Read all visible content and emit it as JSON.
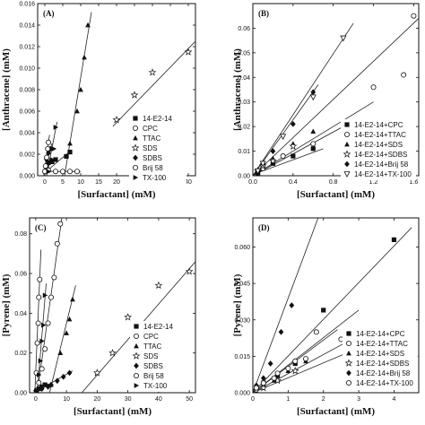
{
  "chart_data": [
    {
      "panel": "(A)",
      "type": "scatter",
      "xlabel": "[Surfactant] (mM)",
      "ylabel": "[Anthracene] (mM)",
      "xlim": [
        -2,
        42
      ],
      "ylim": [
        0,
        0.016
      ],
      "xticks": [
        0,
        5,
        10,
        15,
        20,
        25,
        30,
        35,
        40
      ],
      "yticks": [
        0.0,
        0.002,
        0.004,
        0.006,
        0.008,
        0.01,
        0.012,
        0.014,
        0.016
      ],
      "ytick_decimals": 3,
      "legend": "top-center",
      "series": [
        {
          "name": "14-E2-14",
          "marker": "square",
          "points": [
            [
              0.2,
              0.0004
            ],
            [
              0.5,
              0.0008
            ],
            [
              1,
              0.0012
            ],
            [
              2,
              0.0013
            ],
            [
              3,
              0.0015
            ],
            [
              6,
              0.0018
            ],
            [
              7,
              0.0022
            ]
          ]
        },
        {
          "name": "CPC",
          "marker": "circle-open",
          "points": [
            [
              0.3,
              0.0004
            ],
            [
              1,
              0.0005
            ],
            [
              3,
              0.0004
            ],
            [
              5,
              0.0004
            ],
            [
              7,
              0.0004
            ],
            [
              9,
              0.0004
            ]
          ]
        },
        {
          "name": "TTAC",
          "marker": "triangle",
          "points": [
            [
              7,
              0.003
            ],
            [
              9,
              0.006
            ],
            [
              10,
              0.008
            ],
            [
              11,
              0.011
            ],
            [
              12,
              0.014
            ]
          ]
        },
        {
          "name": "SDS",
          "marker": "star-open",
          "points": [
            [
              20,
              0.0052
            ],
            [
              25,
              0.0075
            ],
            [
              30,
              0.0096
            ],
            [
              40,
              0.0115
            ]
          ]
        },
        {
          "name": "SDBS",
          "marker": "diamond",
          "points": [
            [
              0.5,
              0.0015
            ],
            [
              1,
              0.0021
            ],
            [
              1.5,
              0.0025
            ]
          ]
        },
        {
          "name": "Brij 58",
          "marker": "circle-open",
          "points": [
            [
              0,
              0.0004
            ],
            [
              0.2,
              0.0009
            ],
            [
              0.5,
              0.0017
            ],
            [
              0.8,
              0.0025
            ],
            [
              1,
              0.0031
            ]
          ]
        },
        {
          "name": "TX-100",
          "marker": "triangle-right",
          "points": [
            [
              1,
              0.0004
            ],
            [
              2,
              0.0015
            ],
            [
              2.5,
              0.0025
            ],
            [
              3,
              0.0045
            ]
          ]
        }
      ],
      "lines": [
        {
          "x": [
            0,
            7.5
          ],
          "y": [
            0.0003,
            0.0024
          ]
        },
        {
          "x": [
            0,
            10
          ],
          "y": [
            0.0004,
            0.0004
          ]
        },
        {
          "x": [
            5.5,
            13
          ],
          "y": [
            0.0,
            0.0152
          ]
        },
        {
          "x": [
            19,
            42
          ],
          "y": [
            0.0046,
            0.0125
          ]
        },
        {
          "x": [
            0,
            2
          ],
          "y": [
            0.0007,
            0.003
          ]
        },
        {
          "x": [
            -0.3,
            1.3
          ],
          "y": [
            0.0,
            0.0038
          ]
        },
        {
          "x": [
            0.5,
            3.4
          ],
          "y": [
            0.0,
            0.005
          ]
        }
      ]
    },
    {
      "panel": "(B)",
      "type": "scatter",
      "xlabel": "[Surfactant] (mM)",
      "ylabel": "[Anthracene] (mM)",
      "xlim": [
        0,
        1.65
      ],
      "ylim": [
        0,
        0.07
      ],
      "xticks": [
        0.0,
        0.4,
        0.8,
        1.2,
        1.6
      ],
      "yticks": [
        0.0,
        0.01,
        0.02,
        0.03,
        0.04,
        0.05,
        0.06
      ],
      "xtick_decimals": 1,
      "ytick_decimals": 2,
      "legend": "bottom-right",
      "series": [
        {
          "name": "14-E2-14+CPC",
          "marker": "square",
          "points": [
            [
              0.05,
              0.001
            ],
            [
              0.1,
              0.003
            ],
            [
              0.2,
              0.005
            ],
            [
              0.4,
              0.008
            ],
            [
              0.6,
              0.011
            ]
          ]
        },
        {
          "name": "14-E2-14+TTAC",
          "marker": "circle-open",
          "points": [
            [
              0.05,
              0.002
            ],
            [
              0.1,
              0.003
            ],
            [
              0.3,
              0.008
            ],
            [
              0.6,
              0.013
            ],
            [
              0.9,
              0.017
            ],
            [
              1.2,
              0.036
            ],
            [
              1.5,
              0.041
            ],
            [
              1.6,
              0.065
            ]
          ]
        },
        {
          "name": "14-E2-14+SDS",
          "marker": "triangle",
          "points": [
            [
              0.05,
              0.002
            ],
            [
              0.1,
              0.004
            ],
            [
              0.2,
              0.007
            ],
            [
              0.4,
              0.013
            ],
            [
              0.6,
              0.018
            ]
          ]
        },
        {
          "name": "14-E2-14+SDBS",
          "marker": "star-open",
          "points": [
            [
              0.05,
              0.002
            ],
            [
              0.1,
              0.004
            ],
            [
              0.2,
              0.006
            ],
            [
              0.4,
              0.012
            ]
          ]
        },
        {
          "name": "14-E2-14+Brij 58",
          "marker": "diamond",
          "points": [
            [
              0.05,
              0.002
            ],
            [
              0.1,
              0.005
            ],
            [
              0.2,
              0.01
            ],
            [
              0.4,
              0.021
            ],
            [
              0.6,
              0.034
            ]
          ]
        },
        {
          "name": "14-E2-14+TX-100",
          "marker": "triangle-down-open",
          "points": [
            [
              0.05,
              0.002
            ],
            [
              0.1,
              0.005
            ],
            [
              0.3,
              0.016
            ],
            [
              0.6,
              0.032
            ],
            [
              0.9,
              0.056
            ]
          ]
        }
      ],
      "lines": [
        {
          "x": [
            0,
            0.7
          ],
          "y": [
            0.0005,
            0.011
          ]
        },
        {
          "x": [
            0,
            1.65
          ],
          "y": [
            0.0,
            0.064
          ]
        },
        {
          "x": [
            0,
            1.2
          ],
          "y": [
            0.0,
            0.03
          ]
        },
        {
          "x": [
            0,
            0.9
          ],
          "y": [
            0.0,
            0.02
          ]
        },
        {
          "x": [
            0,
            0.65
          ],
          "y": [
            0.0,
            0.037
          ]
        },
        {
          "x": [
            0,
            1.0
          ],
          "y": [
            0.0,
            0.062
          ]
        }
      ]
    },
    {
      "panel": "(C)",
      "type": "scatter",
      "xlabel": "[Surfactant] (mM)",
      "ylabel": "[Pyrene] (mM)",
      "xlim": [
        -2,
        52
      ],
      "ylim": [
        0,
        0.088
      ],
      "xticks": [
        0,
        10,
        20,
        30,
        40,
        50
      ],
      "yticks": [
        0.0,
        0.02,
        0.04,
        0.06,
        0.08
      ],
      "ytick_decimals": 2,
      "legend": "bottom-right",
      "series": [
        {
          "name": "14-E2-14",
          "marker": "square",
          "points": [
            [
              0.3,
              0.001
            ],
            [
              1,
              0.002
            ],
            [
              2,
              0.003
            ],
            [
              3,
              0.004
            ]
          ]
        },
        {
          "name": "CPC",
          "marker": "circle-open",
          "points": [
            [
              1,
              0.005
            ],
            [
              2,
              0.012
            ],
            [
              3,
              0.022
            ],
            [
              4,
              0.035
            ],
            [
              5,
              0.048
            ],
            [
              6,
              0.058
            ],
            [
              7,
              0.075
            ],
            [
              8,
              0.085
            ]
          ]
        },
        {
          "name": "TTAC",
          "marker": "triangle",
          "points": [
            [
              5,
              0.004
            ],
            [
              8,
              0.02
            ],
            [
              10,
              0.03
            ],
            [
              11,
              0.037
            ],
            [
              12,
              0.047
            ]
          ]
        },
        {
          "name": "SDS",
          "marker": "star-open",
          "points": [
            [
              20,
              0.01
            ],
            [
              25,
              0.02
            ],
            [
              30,
              0.038
            ],
            [
              40,
              0.054
            ],
            [
              50,
              0.061
            ]
          ]
        },
        {
          "name": "SDBS",
          "marker": "diamond",
          "points": [
            [
              0,
              0.001
            ],
            [
              2,
              0.002
            ],
            [
              4,
              0.003
            ],
            [
              5,
              0.004
            ],
            [
              7,
              0.006
            ],
            [
              9,
              0.008
            ],
            [
              11,
              0.01
            ]
          ]
        },
        {
          "name": "Brij 58",
          "marker": "circle-open",
          "points": [
            [
              0.2,
              0.01
            ],
            [
              0.5,
              0.025
            ],
            [
              0.8,
              0.035
            ],
            [
              1,
              0.048
            ],
            [
              1.3,
              0.057
            ]
          ]
        },
        {
          "name": "TX-100",
          "marker": "triangle-right",
          "points": [
            [
              1,
              0.009
            ],
            [
              1.5,
              0.016
            ],
            [
              2,
              0.026
            ],
            [
              2.5,
              0.034
            ],
            [
              3,
              0.049
            ]
          ]
        }
      ],
      "lines": [
        {
          "x": [
            0,
            4
          ],
          "y": [
            0.0005,
            0.0045
          ]
        },
        {
          "x": [
            0.5,
            8.5
          ],
          "y": [
            0.0,
            0.088
          ]
        },
        {
          "x": [
            4.5,
            13
          ],
          "y": [
            0.0,
            0.054
          ]
        },
        {
          "x": [
            15,
            52
          ],
          "y": [
            0.0,
            0.066
          ]
        },
        {
          "x": [
            0,
            12
          ],
          "y": [
            0.0005,
            0.011
          ]
        },
        {
          "x": [
            -0.3,
            1.7
          ],
          "y": [
            0.0,
            0.072
          ]
        },
        {
          "x": [
            0.5,
            3.4
          ],
          "y": [
            0.0,
            0.055
          ]
        }
      ]
    },
    {
      "panel": "(D)",
      "type": "scatter",
      "xlabel": "[Surfactant] (mM)",
      "ylabel": "[Pyrene] (mM)",
      "xlim": [
        0,
        4.7
      ],
      "ylim": [
        0,
        0.072
      ],
      "xticks": [
        0,
        1,
        2,
        3,
        4
      ],
      "yticks": [
        0.0,
        0.015,
        0.03,
        0.045,
        0.06
      ],
      "ytick_decimals": 3,
      "legend": "bottom-right",
      "series": [
        {
          "name": "14-E2-14+CPC",
          "marker": "square",
          "points": [
            [
              0.1,
              0.002
            ],
            [
              0.3,
              0.004
            ],
            [
              0.7,
              0.007
            ],
            [
              1.2,
              0.012
            ],
            [
              2,
              0.034
            ],
            [
              4,
              0.063
            ]
          ]
        },
        {
          "name": "14-E2-14+TTAC",
          "marker": "circle-open",
          "points": [
            [
              0.1,
              0.002
            ],
            [
              0.3,
              0.004
            ],
            [
              0.7,
              0.008
            ],
            [
              1.2,
              0.013
            ],
            [
              1.8,
              0.025
            ],
            [
              2.5,
              0.022
            ]
          ]
        },
        {
          "name": "14-E2-14+SDS",
          "marker": "triangle",
          "points": [
            [
              0.1,
              0.002
            ],
            [
              0.3,
              0.003
            ],
            [
              0.6,
              0.005
            ],
            [
              1,
              0.009
            ],
            [
              1.5,
              0.013
            ]
          ]
        },
        {
          "name": "14-E2-14+SDBS",
          "marker": "star-open",
          "points": [
            [
              0.1,
              0.001
            ],
            [
              0.3,
              0.002
            ],
            [
              0.7,
              0.005
            ],
            [
              1.2,
              0.009
            ]
          ]
        },
        {
          "name": "14-E2-14+Brij 58",
          "marker": "diamond",
          "points": [
            [
              0.1,
              0.003
            ],
            [
              0.3,
              0.006
            ],
            [
              0.5,
              0.012
            ],
            [
              0.8,
              0.025
            ],
            [
              1.1,
              0.036
            ]
          ]
        },
        {
          "name": "14-E2-14+TX-100",
          "marker": "circle-open",
          "points": [
            [
              0.1,
              0.002
            ],
            [
              0.3,
              0.004
            ],
            [
              0.6,
              0.006
            ],
            [
              1,
              0.01
            ],
            [
              1.5,
              0.014
            ]
          ]
        }
      ],
      "lines": [
        {
          "x": [
            0,
            4.5
          ],
          "y": [
            0.0,
            0.068
          ]
        },
        {
          "x": [
            0,
            3
          ],
          "y": [
            0.0,
            0.034
          ]
        },
        {
          "x": [
            0,
            2.8
          ],
          "y": [
            0.0,
            0.022
          ]
        },
        {
          "x": [
            0,
            2.6
          ],
          "y": [
            0.0,
            0.016
          ]
        },
        {
          "x": [
            0,
            1.85
          ],
          "y": [
            0.0,
            0.072
          ]
        },
        {
          "x": [
            0,
            2.4
          ],
          "y": [
            0.0,
            0.026
          ]
        }
      ]
    }
  ]
}
